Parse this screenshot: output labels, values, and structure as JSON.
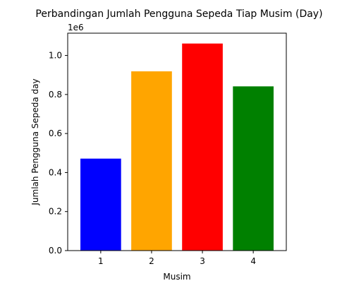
{
  "chart_data": {
    "type": "bar",
    "title": "Perbandingan Jumlah Pengguna Sepeda Tiap Musim (Day)",
    "xlabel": "Musim",
    "ylabel": "Jumlah Pengguna Sepeda day",
    "offset_text": "1e6",
    "categories": [
      "1",
      "2",
      "3",
      "4"
    ],
    "values": [
      471348,
      918589,
      1061129,
      841613
    ],
    "colors": [
      "#0000ff",
      "#ffa500",
      "#ff0000",
      "#008000"
    ],
    "ylim": [
      0,
      1114185
    ],
    "yticks": [
      0.0,
      0.2,
      0.4,
      0.6,
      0.8,
      1.0
    ],
    "ytick_labels": [
      "0.0",
      "0.2",
      "0.4",
      "0.6",
      "0.8",
      "1.0"
    ],
    "ytick_scale": 1000000,
    "grid": false
  }
}
